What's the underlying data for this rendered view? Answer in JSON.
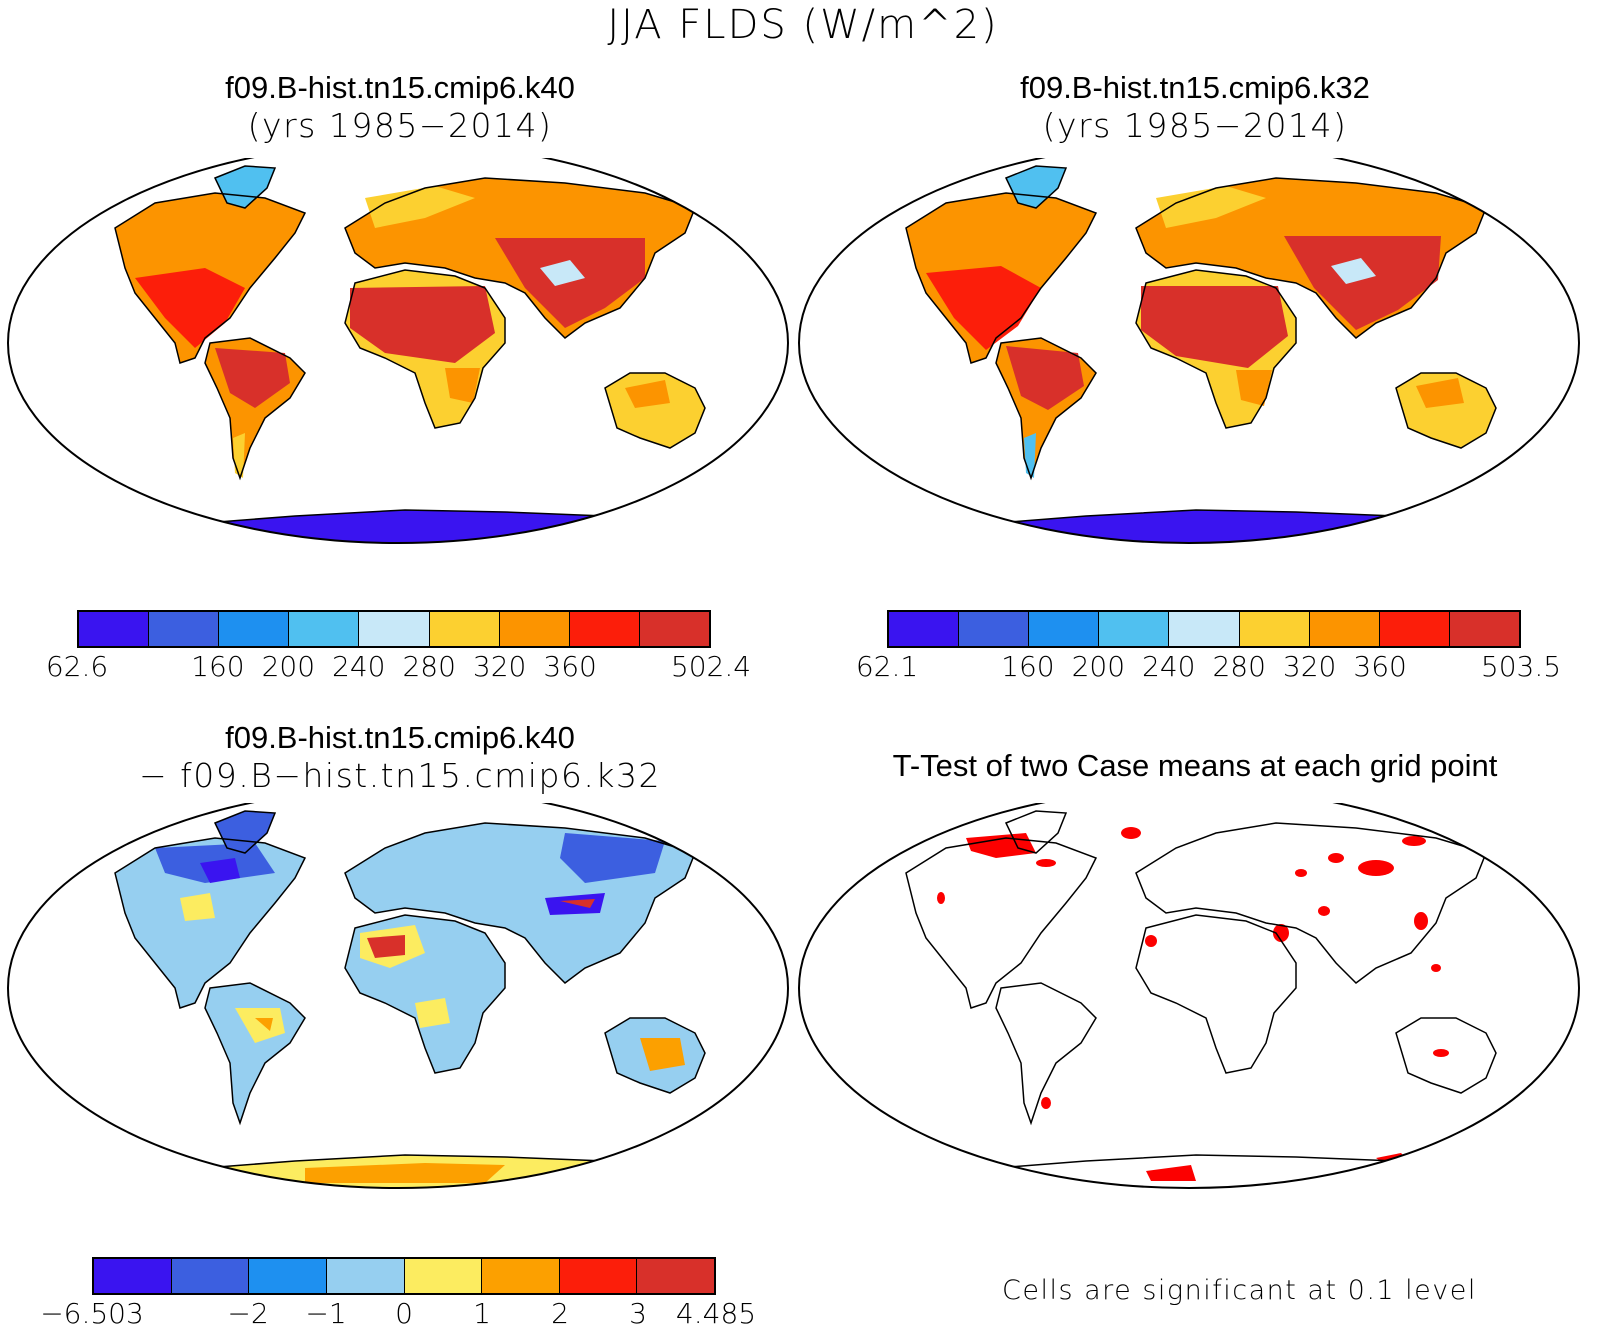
{
  "figure_title": "JJA FLDS (W/m^2)",
  "panels": [
    {
      "id": "k40",
      "title_line1": "f09.B-hist.tn15.cmip6.k40",
      "title_line2": "(yrs 1985−2014)",
      "colorbar": {
        "colors": [
          "#3a14f0",
          "#3c5fe0",
          "#1e90f0",
          "#50c0f0",
          "#c8e8f8",
          "#fcd030",
          "#fc9400",
          "#fc1e0a",
          "#d8302a"
        ],
        "tick_labels": [
          "62.6",
          "160",
          "200",
          "240",
          "280",
          "320",
          "360",
          "502.4"
        ],
        "tick_boundaries": [
          0,
          2,
          3,
          4,
          5,
          6,
          7,
          9
        ]
      }
    },
    {
      "id": "k32",
      "title_line1": "f09.B-hist.tn15.cmip6.k32",
      "title_line2": "(yrs 1985−2014)",
      "colorbar": {
        "colors": [
          "#3a14f0",
          "#3c5fe0",
          "#1e90f0",
          "#50c0f0",
          "#c8e8f8",
          "#fcd030",
          "#fc9400",
          "#fc1e0a",
          "#d8302a"
        ],
        "tick_labels": [
          "62.1",
          "160",
          "200",
          "240",
          "280",
          "320",
          "360",
          "503.5"
        ],
        "tick_boundaries": [
          0,
          2,
          3,
          4,
          5,
          6,
          7,
          9
        ]
      }
    },
    {
      "id": "diff",
      "title_line1": "f09.B-hist.tn15.cmip6.k40",
      "title_line2": "− f09.B−hist.tn15.cmip6.k32",
      "colorbar": {
        "colors": [
          "#3a14f0",
          "#3c5fe0",
          "#1e90f0",
          "#96cff0",
          "#fcec60",
          "#fca000",
          "#fc1e0a",
          "#d8302a"
        ],
        "tick_labels": [
          "−6.503",
          "−2",
          "−1",
          "0",
          "1",
          "2",
          "3",
          "4.485"
        ],
        "tick_boundaries": [
          0,
          2,
          3,
          4,
          5,
          6,
          7,
          8
        ]
      }
    },
    {
      "id": "ttest",
      "title_line1": "T-Test of two Case means at each grid point",
      "footnote": "Cells are significant at 0.1 level"
    }
  ]
}
